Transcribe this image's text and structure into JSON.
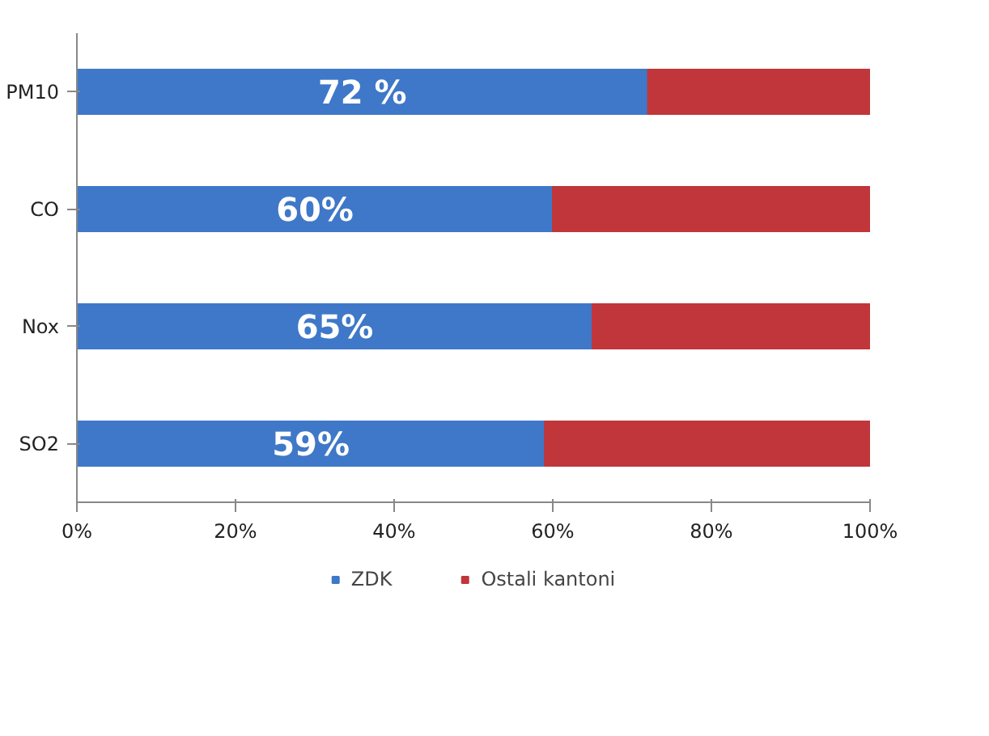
{
  "chart_data": {
    "type": "bar",
    "orientation": "horizontal",
    "stacked": true,
    "categories": [
      "PM10",
      "CO",
      "Nox",
      "SO2"
    ],
    "series": [
      {
        "name": "ZDK",
        "color": "#3f78c8",
        "values": [
          72,
          60,
          65,
          59
        ],
        "value_labels": [
          "72 %",
          "60%",
          "65%",
          "59%"
        ]
      },
      {
        "name": "Ostali kantoni",
        "color": "#c0363a",
        "values": [
          28,
          40,
          35,
          41
        ]
      }
    ],
    "xlim": [
      0,
      100
    ],
    "xticks": [
      {
        "value": 0,
        "label": "0%"
      },
      {
        "value": 20,
        "label": "20%"
      },
      {
        "value": 40,
        "label": "40%"
      },
      {
        "value": 60,
        "label": "60%"
      },
      {
        "value": 80,
        "label": "80%"
      },
      {
        "value": 100,
        "label": "100%"
      }
    ],
    "grid": false,
    "legend": "bottom"
  }
}
